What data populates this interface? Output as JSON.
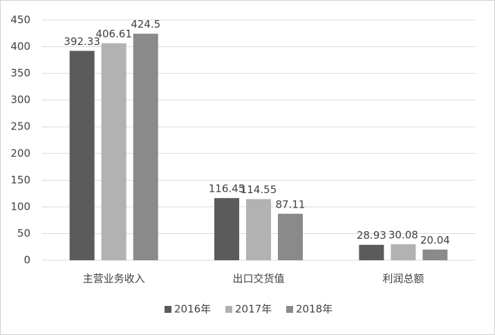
{
  "chart_data": {
    "type": "bar",
    "categories": [
      "主营业务收入",
      "出口交货值",
      "利润总额"
    ],
    "series": [
      {
        "name": "2016年",
        "color": "#5b5b5b",
        "values": [
          392.33,
          116.45,
          28.93
        ]
      },
      {
        "name": "2017年",
        "color": "#b2b2b2",
        "values": [
          406.61,
          114.55,
          30.08
        ]
      },
      {
        "name": "2018年",
        "color": "#8a8a8a",
        "values": [
          424.5,
          87.11,
          20.04
        ]
      }
    ],
    "ylim": [
      0,
      450
    ],
    "yticks": [
      0,
      50,
      100,
      150,
      200,
      250,
      300,
      350,
      400,
      450
    ],
    "grid": true,
    "legend": "bottom"
  }
}
